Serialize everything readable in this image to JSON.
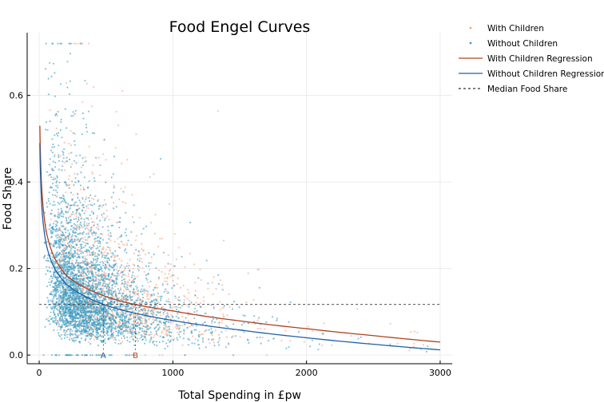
{
  "chart_data": {
    "type": "scatter",
    "title": "Food Engel Curves",
    "xlabel": "Total Spending in £pw",
    "ylabel": "Food Share",
    "xlim": [
      -90,
      3090
    ],
    "ylim": [
      -0.02,
      0.745
    ],
    "xticks": [
      0,
      1000,
      2000,
      3000
    ],
    "yticks": [
      0.0,
      0.2,
      0.4,
      0.6
    ],
    "ytick_labels": [
      "0.0",
      "0.2",
      "0.4",
      "0.6"
    ],
    "grid": true,
    "legend_position": "top-right, outside plot",
    "series": [
      {
        "name": "With Children",
        "kind": "scatter",
        "color": "#f4a582",
        "approx_points": 1500
      },
      {
        "name": "Without Children",
        "kind": "scatter",
        "color": "#3a9fc7",
        "approx_points": 3500
      },
      {
        "name": "With Children Regression",
        "kind": "line",
        "color": "#b2401f",
        "x": [
          5,
          20,
          50,
          100,
          200,
          300,
          500,
          700,
          1000,
          1500,
          2000,
          2500,
          3000
        ],
        "y": [
          0.53,
          0.38,
          0.29,
          0.235,
          0.185,
          0.163,
          0.135,
          0.118,
          0.102,
          0.079,
          0.061,
          0.045,
          0.03
        ]
      },
      {
        "name": "Without Children Regression",
        "kind": "line",
        "color": "#1f5fa8",
        "x": [
          5,
          20,
          50,
          100,
          200,
          300,
          500,
          700,
          1000,
          1500,
          2000,
          2500,
          3000
        ],
        "y": [
          0.49,
          0.34,
          0.26,
          0.21,
          0.165,
          0.143,
          0.115,
          0.098,
          0.08,
          0.058,
          0.04,
          0.025,
          0.012
        ]
      },
      {
        "name": "Median Food Share",
        "kind": "hline",
        "color": "#333333",
        "y": 0.117,
        "x": [
          0,
          3000
        ]
      }
    ],
    "annotations": [
      {
        "text": "A",
        "x": 480,
        "y": 0.0,
        "color": "#1f5fa8",
        "vline_to": "Without Children Regression"
      },
      {
        "text": "B",
        "x": 720,
        "y": 0.0,
        "color": "#b2401f",
        "vline_to": "With Children Regression"
      }
    ]
  }
}
